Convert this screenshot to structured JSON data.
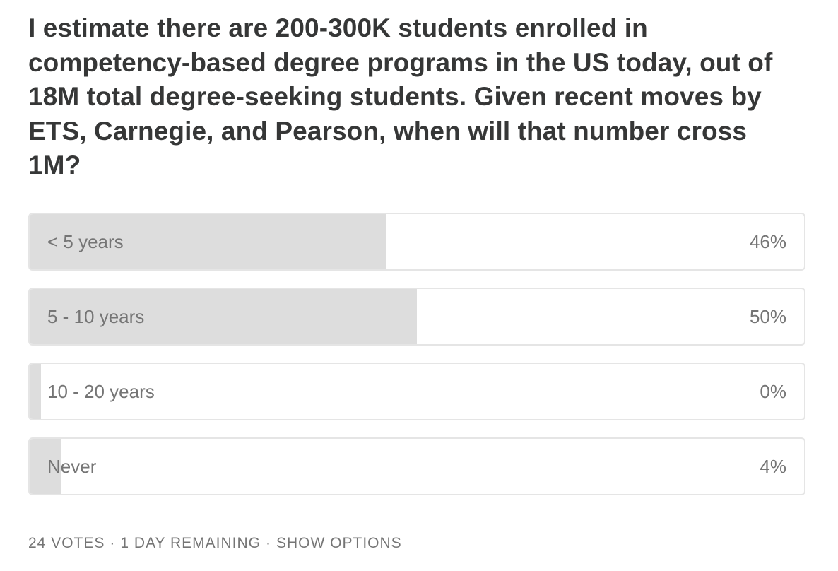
{
  "poll": {
    "question": "I estimate there are 200-300K students enrolled in competency-based degree programs in the US today, out of 18M total degree-seeking students. Given recent moves by ETS, Carnegie, and Pearson, when will that number cross 1M?",
    "options": [
      {
        "label": "< 5 years",
        "percent_label": "46%",
        "share": 0.46
      },
      {
        "label": "5 - 10 years",
        "percent_label": "50%",
        "share": 0.5
      },
      {
        "label": "10 - 20 years",
        "percent_label": "0%",
        "share": 0.0
      },
      {
        "label": "Never",
        "percent_label": "4%",
        "share": 0.04
      }
    ],
    "footer": {
      "votes": "24 VOTES",
      "separator": "·",
      "remaining": "1 DAY REMAINING",
      "show_options": "SHOW OPTIONS"
    },
    "colors": {
      "fill": "#dddddd",
      "border": "#e5e5e5",
      "text": "#363737",
      "muted": "#757575"
    }
  }
}
